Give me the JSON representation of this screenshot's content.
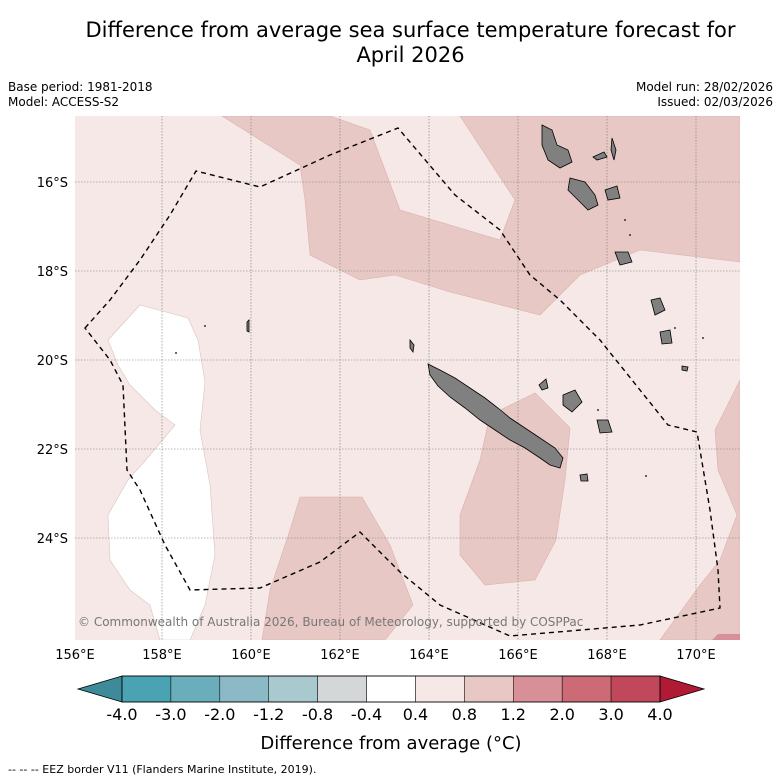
{
  "title_line1": "Difference from average sea surface temperature forecast for",
  "title_line2": "April 2026",
  "base_period": "Base period: 1981-2018",
  "model": "Model: ACCESS-S2",
  "model_run": "Model run: 28/02/2026",
  "issued": "Issued: 02/03/2026",
  "copyright": "© Commonwealth of Australia 2026, Bureau of Meteorology, supported by COSPPac",
  "lat_labels": [
    "16°S",
    "18°S",
    "20°S",
    "22°S",
    "24°S"
  ],
  "lon_labels": [
    "156°E",
    "158°E",
    "160°E",
    "162°E",
    "164°E",
    "166°E",
    "168°E",
    "170°E"
  ],
  "colorbar": {
    "label": "Difference from average (°C)",
    "ticks": [
      "-4.0",
      "-3.0",
      "-2.0",
      "-1.2",
      "-0.8",
      "-0.4",
      "0.4",
      "0.8",
      "1.2",
      "2.0",
      "3.0",
      "4.0"
    ],
    "under_color": "#3d8a99",
    "over_color": "#b01a35",
    "colors": [
      "#4aa3b2",
      "#6aaebb",
      "#8bb9c5",
      "#a8c9cd",
      "#d4d7d7",
      "#ffffff",
      "#f5e8e6",
      "#e8c8c4",
      "#d89098",
      "#cc6a76",
      "#c0485a"
    ]
  },
  "legend_note": "--  --  -- EEZ border V11 (Flanders Marine Institute, 2019).",
  "colors": {
    "land": "#808080",
    "anomaly_low": "#ffffff",
    "anomaly_mid": "#f5e8e6",
    "anomaly_high": "#e8c8c4",
    "anomaly_top": "#d89098"
  }
}
